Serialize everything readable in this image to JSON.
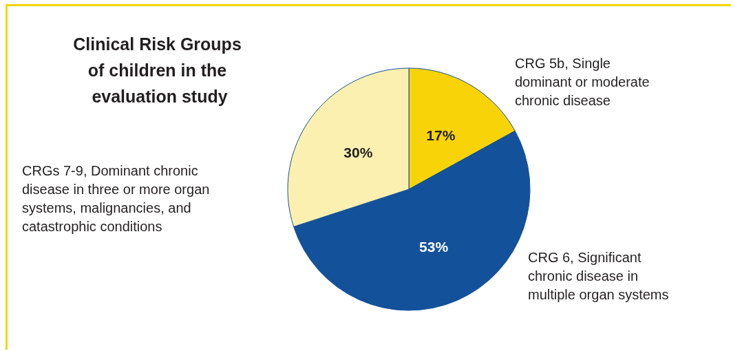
{
  "chart_data": {
    "type": "pie",
    "title": "Clinical Risk Groups of children in the evaluation study",
    "categories": [
      "CRG 5b, Single dominant or moderate chronic disease",
      "CRG 6, Significant chronic disease in multiple organ systems",
      "CRGs 7-9, Dominant chronic disease in three or more organ systems, malignancies, and catastrophic conditions"
    ],
    "values": [
      17,
      53,
      30
    ],
    "colors": [
      "#f7d308",
      "#13519a",
      "#fbf0b0"
    ],
    "value_labels": [
      "17%",
      "53%",
      "30%"
    ],
    "legend": false
  }
}
